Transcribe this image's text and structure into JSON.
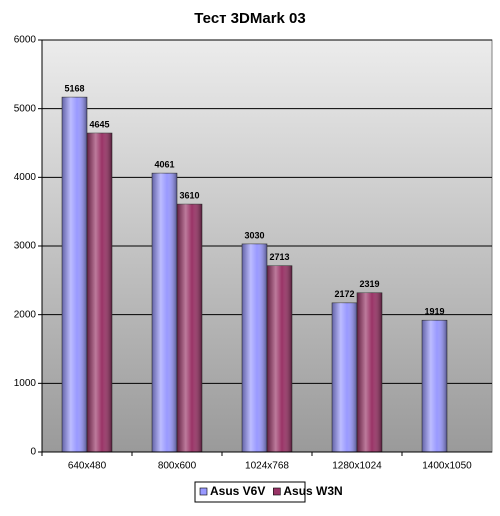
{
  "chart_data": {
    "type": "bar",
    "title": "Тест 3DMark 03",
    "categories": [
      "640x480",
      "800x600",
      "1024x768",
      "1280x1024",
      "1400x1050"
    ],
    "series": [
      {
        "name": "Asus V6V",
        "color": "#9999ff",
        "values": [
          5168,
          4061,
          3030,
          2172,
          1919
        ]
      },
      {
        "name": "Asus W3N",
        "color": "#993366",
        "values": [
          4645,
          3610,
          2713,
          2319,
          null
        ]
      }
    ],
    "ylim": [
      0,
      6000
    ],
    "yticks": [
      0,
      1000,
      2000,
      3000,
      4000,
      5000,
      6000
    ],
    "grid": true,
    "legend": "bottom"
  }
}
